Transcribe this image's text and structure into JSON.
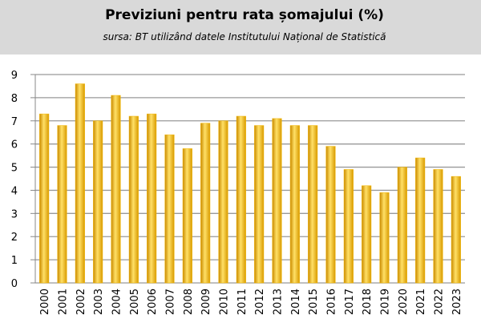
{
  "chart_data": {
    "type": "bar",
    "title": "Previziuni pentru rata șomajului (%)",
    "subtitle": "sursa: BT utilizând datele Institutului Național de Statistică",
    "categories": [
      "2000",
      "2001",
      "2002",
      "2003",
      "2004",
      "2005",
      "2006",
      "2007",
      "2008",
      "2009",
      "2010",
      "2011",
      "2012",
      "2013",
      "2014",
      "2015",
      "2016",
      "2017",
      "2018",
      "2019",
      "2020",
      "2021",
      "2022",
      "2023"
    ],
    "values": [
      7.3,
      6.8,
      8.6,
      7.0,
      8.1,
      7.2,
      7.3,
      6.4,
      5.8,
      6.9,
      7.0,
      7.2,
      6.8,
      7.1,
      6.8,
      6.8,
      5.9,
      4.9,
      4.2,
      3.9,
      5.0,
      5.4,
      4.9,
      4.6
    ],
    "color": "#f2b600",
    "ylim": [
      0,
      9
    ],
    "yticks": [
      0,
      1,
      2,
      3,
      4,
      5,
      6,
      7,
      8,
      9
    ],
    "grid": true
  }
}
